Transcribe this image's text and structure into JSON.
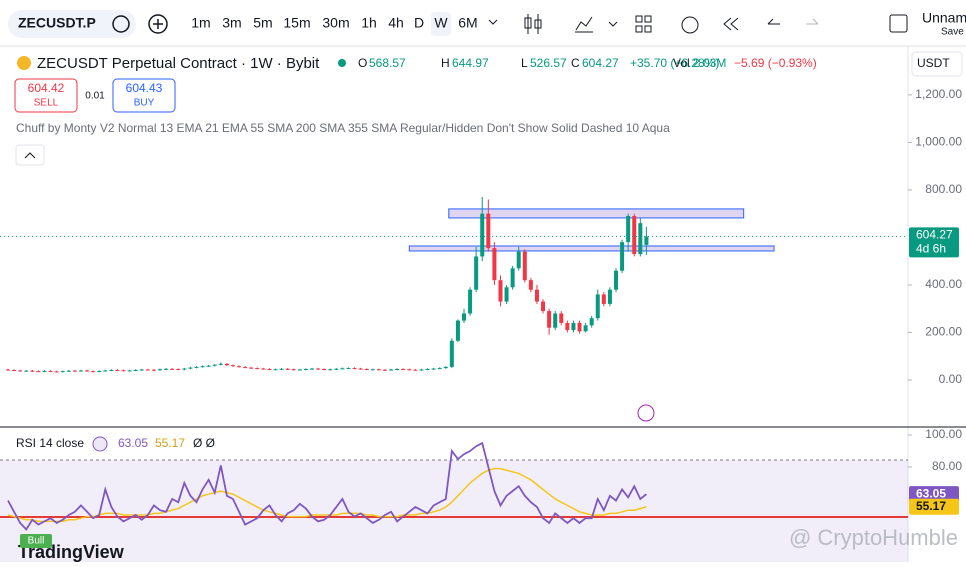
{
  "toolbar": {
    "symbol": "ZECUSDT.P",
    "intervals": [
      "1m",
      "3m",
      "5m",
      "15m",
      "30m",
      "1h",
      "4h",
      "D",
      "W",
      "6M"
    ],
    "active": 8,
    "layout_name": "Unnam",
    "save": "Save"
  },
  "legend": {
    "title": "ZECUSDT Perpetual Contract · 1W · Bybit",
    "o_label": "O",
    "o": "568.57",
    "h_label": "H",
    "h": "644.97",
    "l_label": "L",
    "l": "526.57",
    "c_label": "C",
    "c": "604.27",
    "change": "+35.70 (+6.28%)",
    "vol_label": "Vol",
    "vol": "2.03M",
    "vol_change": "−5.69 (−0.93%)"
  },
  "order": {
    "sell_price": "604.42",
    "sell": "SELL",
    "spread": "0.01",
    "buy_price": "604.43",
    "buy": "BUY"
  },
  "indicator": "Chuff by Monty V2 Normal 13 EMA 21 EMA 55 SMA 200 SMA 355 SMA Regular/Hidden Don't Show Solid Dashed 10 Aqua",
  "currency": "USDT",
  "price_chart": {
    "ylim": [
      -198,
      1410
    ],
    "yticks": [
      {
        "value": 0,
        "label": "0.00"
      },
      {
        "value": 200,
        "label": "200.00"
      },
      {
        "value": 400,
        "label": "400.00"
      },
      {
        "value": 800,
        "label": "800.00"
      },
      {
        "value": 1000,
        "label": "1,000.00"
      },
      {
        "value": 1200,
        "label": "1,200.00"
      }
    ],
    "up_color": "#089981",
    "down_color": "#f23645",
    "countdown": "4d 6h",
    "zones": [
      {
        "from": 72.5,
        "to": 121,
        "top": 720,
        "bottom": 682
      },
      {
        "from": 66,
        "to": 126,
        "top": 564,
        "bottom": 543
      }
    ],
    "candles": [
      [
        44,
        47,
        39,
        42
      ],
      [
        42,
        45,
        37,
        40
      ],
      [
        40,
        43,
        35,
        38
      ],
      [
        38,
        42,
        35,
        39
      ],
      [
        39,
        42,
        34,
        37
      ],
      [
        37,
        40,
        33,
        36
      ],
      [
        36,
        41,
        33,
        38
      ],
      [
        38,
        41,
        33,
        36
      ],
      [
        36,
        39,
        32,
        35
      ],
      [
        35,
        40,
        32,
        37
      ],
      [
        37,
        42,
        34,
        39
      ],
      [
        39,
        42,
        35,
        38
      ],
      [
        38,
        43,
        35,
        40
      ],
      [
        40,
        43,
        34,
        37
      ],
      [
        37,
        40,
        33,
        36
      ],
      [
        36,
        41,
        33,
        38
      ],
      [
        38,
        43,
        35,
        40
      ],
      [
        40,
        45,
        37,
        42
      ],
      [
        42,
        45,
        38,
        41
      ],
      [
        41,
        44,
        36,
        39
      ],
      [
        39,
        43,
        36,
        40
      ],
      [
        40,
        45,
        37,
        42
      ],
      [
        42,
        47,
        39,
        44
      ],
      [
        44,
        47,
        40,
        43
      ],
      [
        43,
        46,
        38,
        41
      ],
      [
        41,
        48,
        38,
        45
      ],
      [
        45,
        50,
        42,
        47
      ],
      [
        47,
        50,
        43,
        46
      ],
      [
        46,
        49,
        41,
        44
      ],
      [
        44,
        51,
        41,
        48
      ],
      [
        48,
        55,
        45,
        52
      ],
      [
        52,
        58,
        49,
        55
      ],
      [
        55,
        61,
        52,
        58
      ],
      [
        58,
        63,
        55,
        60
      ],
      [
        60,
        67,
        57,
        64
      ],
      [
        64,
        74,
        61,
        68
      ],
      [
        68,
        71,
        59,
        62
      ],
      [
        62,
        65,
        55,
        58
      ],
      [
        58,
        61,
        52,
        55
      ],
      [
        55,
        58,
        49,
        52
      ],
      [
        52,
        55,
        47,
        50
      ],
      [
        50,
        53,
        45,
        48
      ],
      [
        48,
        51,
        43,
        46
      ],
      [
        46,
        49,
        41,
        44
      ],
      [
        44,
        48,
        41,
        45
      ],
      [
        45,
        50,
        42,
        47
      ],
      [
        47,
        50,
        42,
        45
      ],
      [
        45,
        48,
        40,
        43
      ],
      [
        43,
        47,
        40,
        44
      ],
      [
        44,
        49,
        41,
        46
      ],
      [
        46,
        51,
        43,
        48
      ],
      [
        48,
        51,
        43,
        46
      ],
      [
        46,
        49,
        41,
        44
      ],
      [
        44,
        48,
        41,
        45
      ],
      [
        45,
        50,
        42,
        47
      ],
      [
        47,
        52,
        44,
        49
      ],
      [
        49,
        53,
        46,
        50
      ],
      [
        50,
        53,
        45,
        48
      ],
      [
        48,
        51,
        43,
        46
      ],
      [
        46,
        49,
        41,
        44
      ],
      [
        44,
        48,
        41,
        45
      ],
      [
        45,
        48,
        40,
        43
      ],
      [
        43,
        46,
        39,
        42
      ],
      [
        42,
        47,
        39,
        44
      ],
      [
        44,
        49,
        41,
        46
      ],
      [
        46,
        49,
        42,
        45
      ],
      [
        45,
        48,
        40,
        43
      ],
      [
        43,
        46,
        39,
        42
      ],
      [
        42,
        47,
        39,
        44
      ],
      [
        44,
        49,
        41,
        46
      ],
      [
        46,
        51,
        43,
        48
      ],
      [
        48,
        53,
        45,
        50
      ],
      [
        50,
        58,
        47,
        55
      ],
      [
        55,
        175,
        50,
        165
      ],
      [
        165,
        255,
        160,
        250
      ],
      [
        250,
        300,
        240,
        280
      ],
      [
        280,
        390,
        270,
        380
      ],
      [
        380,
        560,
        370,
        520
      ],
      [
        520,
        770,
        500,
        700
      ],
      [
        700,
        760,
        540,
        555
      ],
      [
        555,
        580,
        400,
        420
      ],
      [
        420,
        440,
        310,
        330
      ],
      [
        330,
        400,
        320,
        390
      ],
      [
        390,
        480,
        380,
        470
      ],
      [
        470,
        560,
        460,
        540
      ],
      [
        540,
        550,
        410,
        420
      ],
      [
        420,
        430,
        370,
        380
      ],
      [
        380,
        400,
        320,
        330
      ],
      [
        330,
        340,
        280,
        290
      ],
      [
        290,
        300,
        190,
        220
      ],
      [
        220,
        290,
        210,
        280
      ],
      [
        280,
        290,
        230,
        240
      ],
      [
        240,
        250,
        200,
        210
      ],
      [
        210,
        250,
        200,
        240
      ],
      [
        240,
        250,
        195,
        205
      ],
      [
        205,
        240,
        200,
        230
      ],
      [
        230,
        270,
        220,
        260
      ],
      [
        260,
        380,
        250,
        360
      ],
      [
        360,
        370,
        310,
        320
      ],
      [
        320,
        390,
        310,
        380
      ],
      [
        380,
        470,
        370,
        460
      ],
      [
        460,
        590,
        450,
        580
      ],
      [
        580,
        700,
        540,
        690
      ],
      [
        690,
        700,
        520,
        530
      ],
      [
        530,
        680,
        520,
        660
      ],
      [
        568.57,
        644.97,
        526.57,
        604.27
      ]
    ]
  },
  "rsi": {
    "title": "RSI 14 close",
    "extra": "Ø Ø",
    "ylim": [
      20.6,
      104.4
    ],
    "yticks": [
      {
        "value": 100,
        "label": "100.00"
      },
      {
        "value": 80,
        "label": "80.00"
      }
    ],
    "color": "#7e57c2",
    "ma_color": "#f5c518",
    "badge": "Bull",
    "values": [
      59,
      52,
      45,
      41,
      47,
      44,
      46,
      48,
      45,
      47,
      50,
      52,
      56,
      52,
      48,
      50,
      66,
      55,
      49,
      46,
      48,
      50,
      47,
      50,
      56,
      53,
      52,
      60,
      58,
      70,
      62,
      58,
      66,
      72,
      64,
      81,
      62,
      60,
      52,
      44,
      46,
      48,
      53,
      56,
      50,
      46,
      51,
      53,
      57,
      54,
      49,
      46,
      47,
      50,
      55,
      60,
      52,
      49,
      51,
      48,
      45,
      47,
      50,
      52,
      46,
      49,
      52,
      55,
      53,
      51,
      56,
      58,
      60,
      90,
      85,
      88,
      90,
      93,
      95,
      80,
      65,
      56,
      62,
      65,
      68,
      62,
      58,
      55,
      48,
      45,
      51,
      48,
      45,
      48,
      45,
      48,
      48,
      60,
      53,
      62,
      59,
      66,
      61,
      68,
      60,
      63.05
    ],
    "ma": [
      50,
      49,
      48,
      47,
      47,
      46,
      46,
      46,
      46,
      46,
      47,
      47,
      48,
      49,
      49,
      50,
      51,
      51,
      51,
      50,
      50,
      50,
      50,
      50,
      51,
      51,
      52,
      53,
      54,
      56,
      58,
      60,
      62,
      63,
      64,
      65,
      64,
      63,
      61,
      59,
      57,
      55,
      53,
      52,
      51,
      50,
      49,
      49,
      49,
      49,
      50,
      50,
      50,
      50,
      50,
      51,
      51,
      51,
      51,
      50,
      50,
      49,
      49,
      49,
      49,
      50,
      50,
      50,
      51,
      51,
      52,
      53,
      55,
      58,
      62,
      66,
      70,
      73,
      76,
      78,
      79,
      79,
      78,
      77,
      76,
      74,
      72,
      69,
      66,
      63,
      60,
      58,
      56,
      54,
      52,
      51,
      50,
      50,
      50,
      51,
      51,
      52,
      53,
      53,
      54,
      55.17
    ]
  },
  "branding": {
    "logo": "TradingView",
    "watermark": "@ CryptoHumble"
  }
}
